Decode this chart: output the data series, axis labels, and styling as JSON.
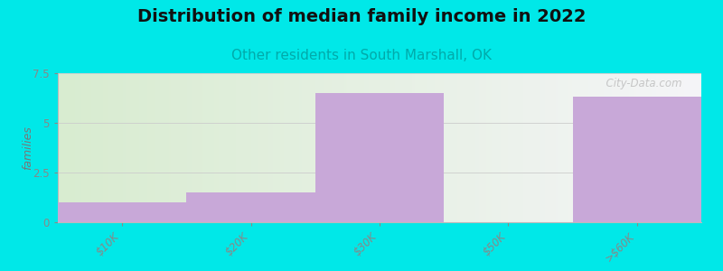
{
  "title": "Distribution of median family income in 2022",
  "subtitle": "Other residents in South Marshall, OK",
  "categories": [
    "$10K",
    "$20K",
    "$30K",
    "$50K",
    ">$60K"
  ],
  "values": [
    1.0,
    1.5,
    6.5,
    0.0,
    6.3
  ],
  "bar_color": "#c8a8d8",
  "bar_edge_color": "#c8a8d8",
  "ylabel": "families",
  "ylim": [
    0,
    7.5
  ],
  "yticks": [
    0,
    2.5,
    5,
    7.5
  ],
  "background_color": "#00e8e8",
  "plot_bg_left": "#d8ecd0",
  "plot_bg_right": "#f5f5f8",
  "title_fontsize": 14,
  "subtitle_fontsize": 11,
  "subtitle_color": "#00aaaa",
  "watermark": "  City-Data.com",
  "bar_width": 1.0
}
